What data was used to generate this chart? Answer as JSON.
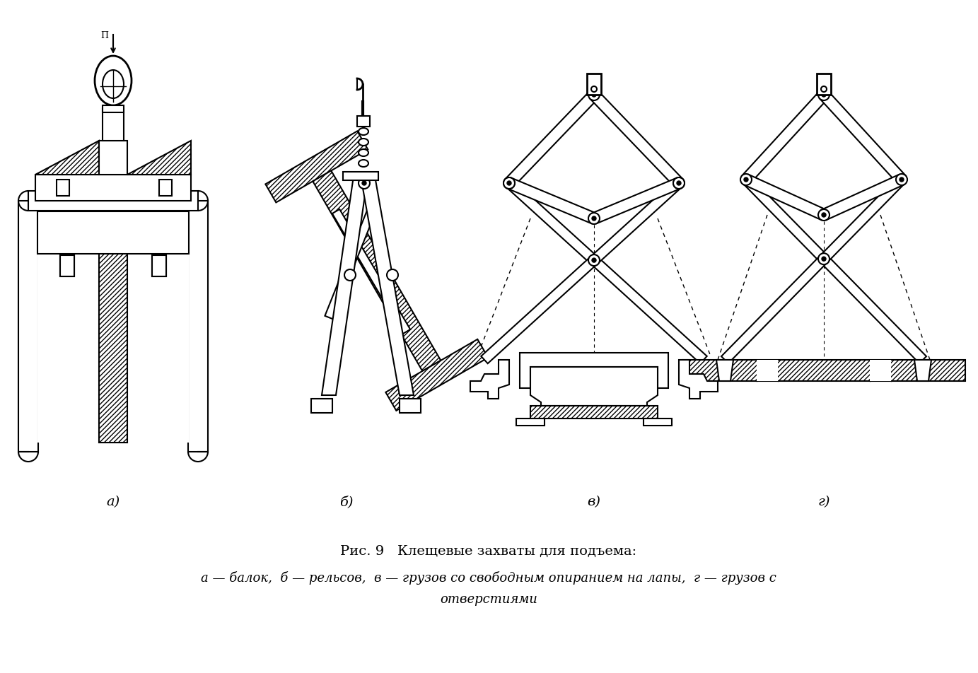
{
  "bg_color": "#ffffff",
  "line_color": "#000000",
  "title_line1": "Рис. 9   Клещевые захваты для подъема:",
  "title_line2": "а — балок,  б — рельсов,  в — грузов со свободным опиранием на лапы,  г — грузов с",
  "title_line3": "отверстиями",
  "label_a": "а)",
  "label_b": "б)",
  "label_v": "в)",
  "label_g": "г)",
  "title_fontsize": 14,
  "label_fontsize": 14,
  "figsize": [
    13.83,
    9.53
  ],
  "dpi": 100
}
